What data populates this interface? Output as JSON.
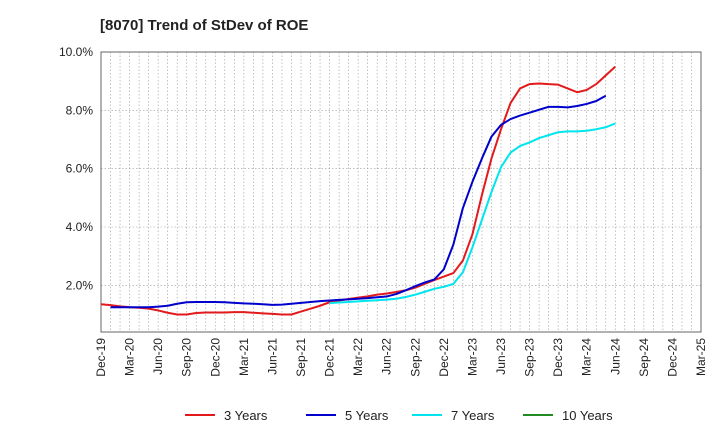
{
  "chart_data": {
    "type": "line",
    "title": "[8070]  Trend of StDev of ROE",
    "xlabel": "",
    "ylabel": "",
    "x_ticks": [
      "Dec-19",
      "Mar-20",
      "Jun-20",
      "Sep-20",
      "Dec-20",
      "Mar-21",
      "Jun-21",
      "Sep-21",
      "Dec-21",
      "Mar-22",
      "Jun-22",
      "Sep-22",
      "Dec-22",
      "Mar-23",
      "Jun-23",
      "Sep-23",
      "Dec-23",
      "Mar-24",
      "Jun-24",
      "Sep-24",
      "Dec-24",
      "Mar-25"
    ],
    "y_ticks": [
      "2.0%",
      "4.0%",
      "6.0%",
      "8.0%",
      "10.0%"
    ],
    "y_tick_values": [
      2,
      4,
      6,
      8,
      10
    ],
    "ylim": [
      0.4,
      10.0
    ],
    "grid": true,
    "legend_position": "bottom",
    "series": [
      {
        "name": "3 Years",
        "color": "#e31a1c",
        "start_index": 0,
        "values": [
          1.35,
          1.32,
          1.28,
          1.25,
          1.23,
          1.2,
          1.14,
          1.06,
          1.0,
          1.0,
          1.05,
          1.07,
          1.07,
          1.07,
          1.08,
          1.08,
          1.06,
          1.04,
          1.02,
          1.0,
          1.0,
          1.1,
          1.2,
          1.3,
          1.42,
          1.48,
          1.53,
          1.58,
          1.62,
          1.68,
          1.72,
          1.77,
          1.83,
          1.92,
          2.05,
          2.18,
          2.3,
          2.42,
          2.85,
          3.75,
          5.1,
          6.35,
          7.35,
          8.25,
          8.75,
          8.9,
          8.92,
          8.9,
          8.88,
          8.75,
          8.62,
          8.7,
          8.9,
          9.2,
          9.5
        ]
      },
      {
        "name": "5 Years",
        "color": "#0000cc",
        "start_index": 1,
        "values": [
          1.25,
          1.25,
          1.25,
          1.25,
          1.25,
          1.27,
          1.3,
          1.37,
          1.42,
          1.43,
          1.43,
          1.43,
          1.42,
          1.4,
          1.38,
          1.37,
          1.35,
          1.33,
          1.34,
          1.37,
          1.4,
          1.43,
          1.46,
          1.48,
          1.5,
          1.52,
          1.54,
          1.56,
          1.59,
          1.62,
          1.7,
          1.83,
          1.97,
          2.1,
          2.2,
          2.55,
          3.4,
          4.65,
          5.55,
          6.35,
          7.1,
          7.5,
          7.7,
          7.82,
          7.92,
          8.02,
          8.12,
          8.12,
          8.1,
          8.15,
          8.22,
          8.32,
          8.5
        ]
      },
      {
        "name": "7 Years",
        "color": "#00e5ee",
        "start_index": 24,
        "values": [
          1.39,
          1.41,
          1.43,
          1.45,
          1.47,
          1.49,
          1.51,
          1.54,
          1.6,
          1.68,
          1.78,
          1.88,
          1.95,
          2.05,
          2.45,
          3.3,
          4.25,
          5.2,
          6.05,
          6.55,
          6.78,
          6.9,
          7.05,
          7.15,
          7.25,
          7.28,
          7.28,
          7.3,
          7.35,
          7.42,
          7.55
        ]
      },
      {
        "name": "10 Years",
        "color": "#228b22",
        "start_index": 0,
        "values": []
      }
    ]
  }
}
